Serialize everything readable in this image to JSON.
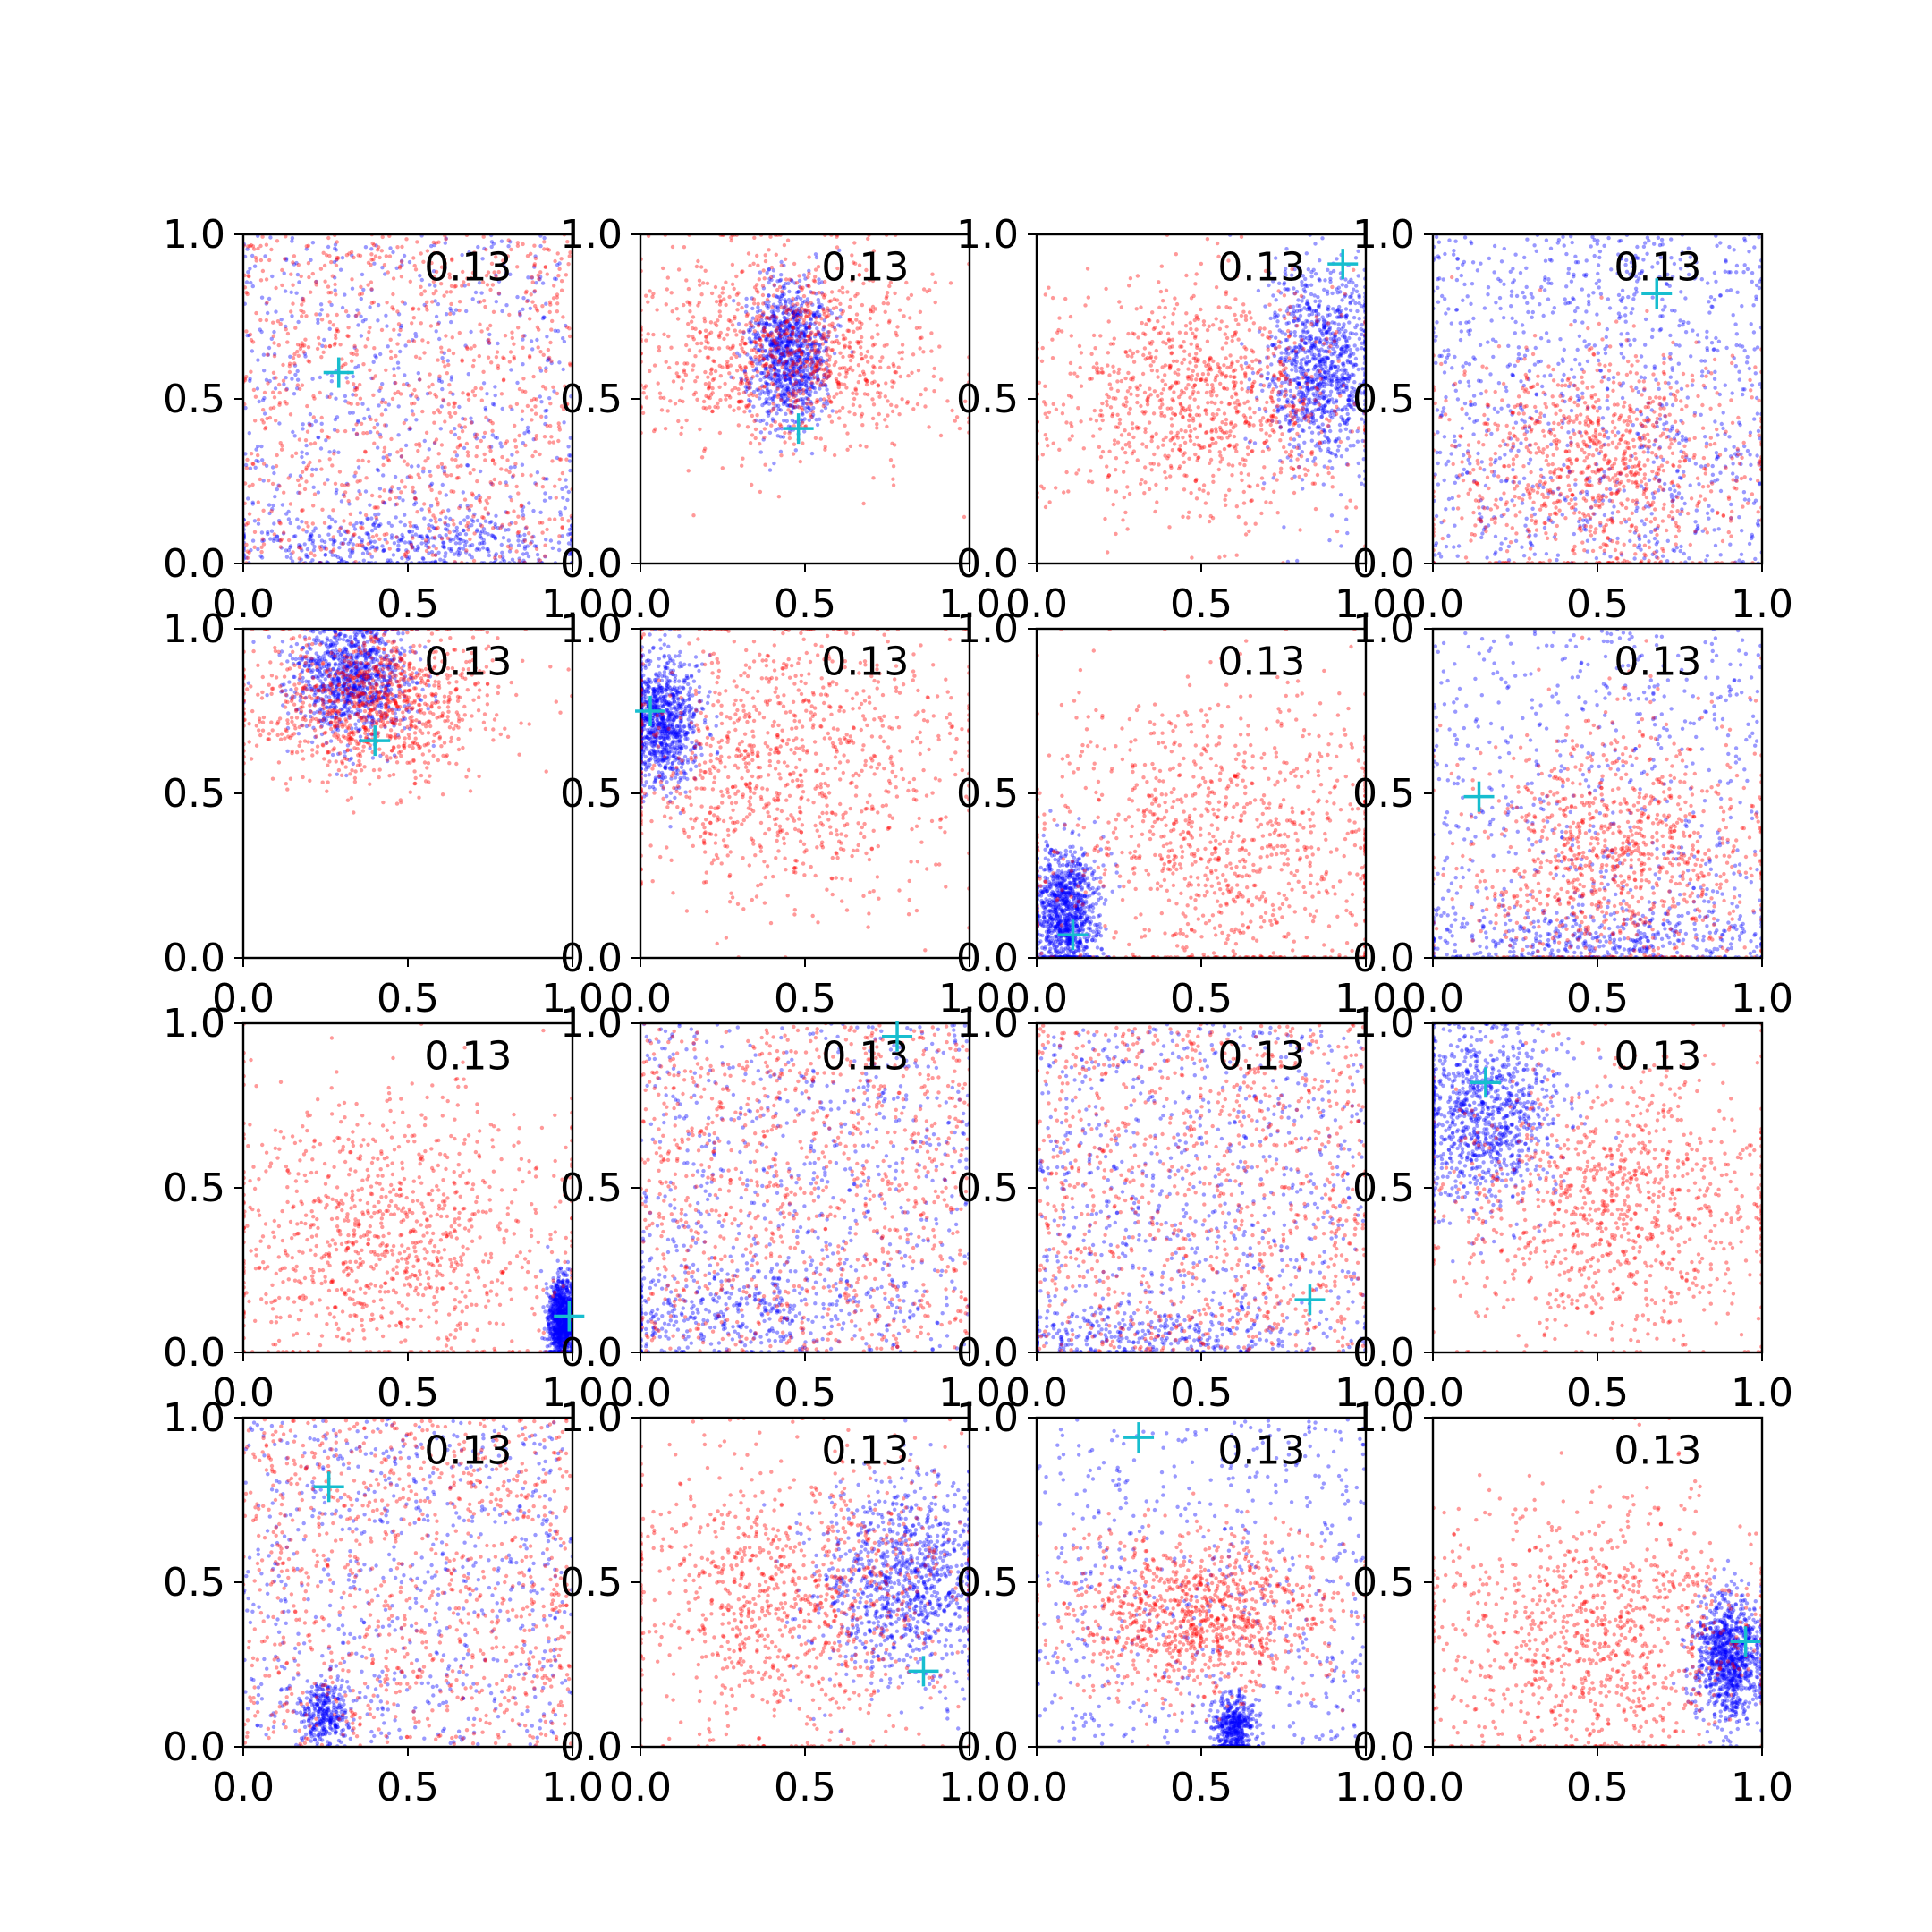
{
  "colors": {
    "background": "#ffffff",
    "series_blue": "#0000ff",
    "series_red": "#ff0000",
    "marker": "#17becf",
    "axis": "#000000"
  },
  "chart_data": {
    "type": "scatter",
    "layout": "4x4 grid of subplots",
    "shared_xlim": [
      0.0,
      1.0
    ],
    "shared_ylim": [
      0.0,
      1.0
    ],
    "xticks": [
      0.0,
      0.5,
      1.0
    ],
    "yticks": [
      0.0,
      0.5,
      1.0
    ],
    "tick_labels": [
      "0.0",
      "0.5",
      "1.0"
    ],
    "grid": false,
    "legend": "none",
    "series_colors": [
      "blue",
      "red"
    ],
    "marker_symbol": "+",
    "point_alpha": 0.4,
    "subplots": [
      {
        "annotation": "0.13",
        "marker": [
          0.29,
          0.58
        ],
        "red": {
          "dist": "uniform",
          "n": 1000
        },
        "blue": {
          "dist": "mix",
          "n": 1000,
          "parts": [
            {
              "type": "uniform",
              "w": 0.6
            },
            {
              "type": "gauss",
              "w": 0.4,
              "c": [
                0.5,
                0.06
              ],
              "s": [
                0.28,
                0.05
              ]
            }
          ]
        }
      },
      {
        "annotation": "0.13",
        "marker": [
          0.48,
          0.41
        ],
        "red": {
          "dist": "gauss",
          "n": 1000,
          "c": [
            0.45,
            0.65
          ],
          "s": [
            0.22,
            0.15
          ]
        },
        "blue": {
          "dist": "gauss",
          "n": 1000,
          "c": [
            0.45,
            0.64
          ],
          "s": [
            0.06,
            0.11
          ]
        }
      },
      {
        "annotation": "0.13",
        "marker": [
          0.93,
          0.91
        ],
        "red": {
          "dist": "gauss",
          "n": 1000,
          "c": [
            0.5,
            0.5
          ],
          "s": [
            0.24,
            0.18
          ]
        },
        "blue": {
          "dist": "gauss",
          "n": 1000,
          "c": [
            0.86,
            0.6
          ],
          "s": [
            0.08,
            0.15
          ]
        }
      },
      {
        "annotation": "0.13",
        "marker": [
          0.68,
          0.82
        ],
        "red": {
          "dist": "gauss",
          "n": 1000,
          "c": [
            0.5,
            0.3
          ],
          "s": [
            0.24,
            0.18
          ]
        },
        "blue": {
          "dist": "uniform",
          "n": 1000
        }
      },
      {
        "annotation": "0.13",
        "marker": [
          0.4,
          0.66
        ],
        "red": {
          "dist": "gauss",
          "n": 1000,
          "c": [
            0.4,
            0.78
          ],
          "s": [
            0.18,
            0.12
          ]
        },
        "blue": {
          "dist": "gauss",
          "n": 1000,
          "c": [
            0.33,
            0.85
          ],
          "s": [
            0.09,
            0.09
          ]
        }
      },
      {
        "annotation": "0.13",
        "marker": [
          0.03,
          0.75
        ],
        "red": {
          "dist": "gauss",
          "n": 1000,
          "c": [
            0.45,
            0.6
          ],
          "s": [
            0.28,
            0.22
          ]
        },
        "blue": {
          "dist": "gauss",
          "n": 1000,
          "c": [
            0.06,
            0.72
          ],
          "s": [
            0.06,
            0.1
          ]
        }
      },
      {
        "annotation": "0.13",
        "marker": [
          0.11,
          0.07
        ],
        "red": {
          "dist": "gauss",
          "n": 1000,
          "c": [
            0.55,
            0.35
          ],
          "s": [
            0.28,
            0.24
          ]
        },
        "blue": {
          "dist": "gauss",
          "n": 1000,
          "c": [
            0.09,
            0.14
          ],
          "s": [
            0.05,
            0.1
          ]
        }
      },
      {
        "annotation": "0.13",
        "marker": [
          0.14,
          0.49
        ],
        "red": {
          "dist": "gauss",
          "n": 1000,
          "c": [
            0.55,
            0.32
          ],
          "s": [
            0.22,
            0.2
          ]
        },
        "blue": {
          "dist": "mix",
          "n": 1000,
          "parts": [
            {
              "type": "uniform",
              "w": 0.6
            },
            {
              "type": "gauss",
              "w": 0.4,
              "c": [
                0.5,
                0.06
              ],
              "s": [
                0.3,
                0.05
              ]
            }
          ]
        }
      },
      {
        "annotation": "0.13",
        "marker": [
          0.99,
          0.11
        ],
        "red": {
          "dist": "gauss",
          "n": 1000,
          "c": [
            0.45,
            0.35
          ],
          "s": [
            0.26,
            0.22
          ]
        },
        "blue": {
          "dist": "gauss",
          "n": 1000,
          "c": [
            0.97,
            0.1
          ],
          "s": [
            0.02,
            0.06
          ]
        }
      },
      {
        "annotation": "0.13",
        "marker": [
          0.78,
          0.96
        ],
        "red": {
          "dist": "uniform",
          "n": 1000
        },
        "blue": {
          "dist": "mix",
          "n": 1000,
          "parts": [
            {
              "type": "uniform",
              "w": 0.65
            },
            {
              "type": "gauss",
              "w": 0.35,
              "c": [
                0.3,
                0.12
              ],
              "s": [
                0.25,
                0.08
              ]
            }
          ]
        }
      },
      {
        "annotation": "0.13",
        "marker": [
          0.83,
          0.16
        ],
        "red": {
          "dist": "uniform",
          "n": 1000
        },
        "blue": {
          "dist": "mix",
          "n": 1000,
          "parts": [
            {
              "type": "uniform",
              "w": 0.7
            },
            {
              "type": "gauss",
              "w": 0.3,
              "c": [
                0.3,
                0.05
              ],
              "s": [
                0.3,
                0.04
              ]
            }
          ]
        }
      },
      {
        "annotation": "0.13",
        "marker": [
          0.16,
          0.82
        ],
        "red": {
          "dist": "gauss",
          "n": 1000,
          "c": [
            0.55,
            0.45
          ],
          "s": [
            0.26,
            0.22
          ]
        },
        "blue": {
          "dist": "gauss",
          "n": 1000,
          "c": [
            0.15,
            0.72
          ],
          "s": [
            0.12,
            0.14
          ]
        }
      },
      {
        "annotation": "0.13",
        "marker": [
          0.26,
          0.79
        ],
        "red": {
          "dist": "uniform",
          "n": 1000
        },
        "blue": {
          "dist": "mix",
          "n": 1000,
          "parts": [
            {
              "type": "uniform",
              "w": 0.7
            },
            {
              "type": "gauss",
              "w": 0.3,
              "c": [
                0.25,
                0.1
              ],
              "s": [
                0.04,
                0.05
              ]
            }
          ]
        }
      },
      {
        "annotation": "0.13",
        "marker": [
          0.86,
          0.23
        ],
        "red": {
          "dist": "gauss",
          "n": 1000,
          "c": [
            0.45,
            0.45
          ],
          "s": [
            0.26,
            0.22
          ]
        },
        "blue": {
          "dist": "gauss",
          "n": 1000,
          "c": [
            0.8,
            0.5
          ],
          "s": [
            0.13,
            0.15
          ]
        }
      },
      {
        "annotation": "0.13",
        "marker": [
          0.31,
          0.94
        ],
        "red": {
          "dist": "gauss",
          "n": 1000,
          "c": [
            0.5,
            0.4
          ],
          "s": [
            0.2,
            0.13
          ]
        },
        "blue": {
          "dist": "mix",
          "n": 1000,
          "parts": [
            {
              "type": "uniform",
              "w": 0.55
            },
            {
              "type": "gauss",
              "w": 0.45,
              "c": [
                0.6,
                0.06
              ],
              "s": [
                0.03,
                0.05
              ]
            }
          ]
        }
      },
      {
        "annotation": "0.13",
        "marker": [
          0.95,
          0.32
        ],
        "red": {
          "dist": "gauss",
          "n": 1000,
          "c": [
            0.5,
            0.35
          ],
          "s": [
            0.26,
            0.2
          ]
        },
        "blue": {
          "dist": "gauss",
          "n": 1000,
          "c": [
            0.9,
            0.27
          ],
          "s": [
            0.05,
            0.09
          ]
        }
      }
    ]
  }
}
